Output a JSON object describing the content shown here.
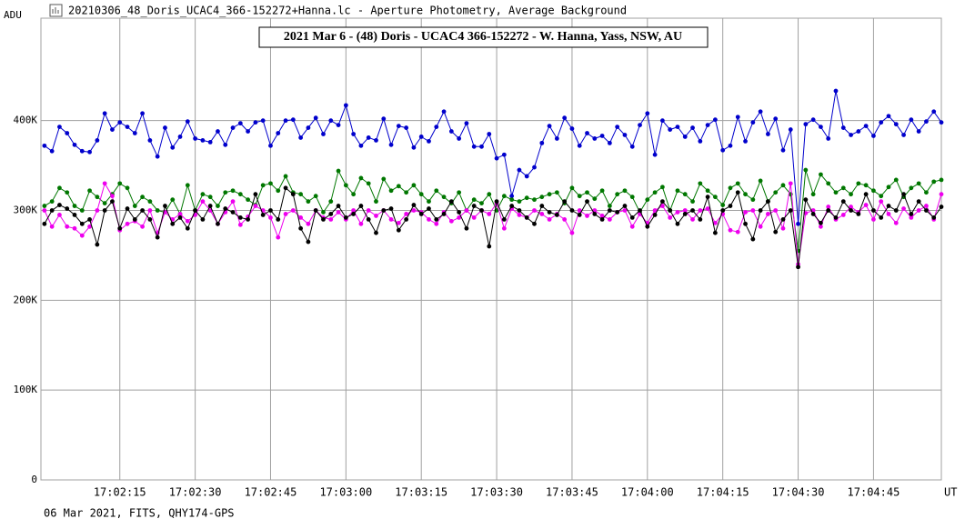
{
  "window_title": "20210306_48_Doris_UCAC4_366-152272+Hanna.lc - Aperture Photometry, Average Background",
  "status": "06 Mar 2021, FITS, QHY174-GPS",
  "chart_data": {
    "type": "line",
    "title": "2021 Mar 6 - (48) Doris - UCAC4 366-152272 - W. Hanna, Yass, NSW, AU",
    "y_label": "ADU",
    "x_label": "UT",
    "grid": true,
    "xlim": [
      -0.7,
      178.5
    ],
    "ylim": [
      0,
      514000
    ],
    "xticks": [
      {
        "value": 15,
        "label": "17:02:15"
      },
      {
        "value": 30,
        "label": "17:02:30"
      },
      {
        "value": 45,
        "label": "17:02:45"
      },
      {
        "value": 60,
        "label": "17:03:00"
      },
      {
        "value": 75,
        "label": "17:03:15"
      },
      {
        "value": 90,
        "label": "17:03:30"
      },
      {
        "value": 105,
        "label": "17:03:45"
      },
      {
        "value": 120,
        "label": "17:04:00"
      },
      {
        "value": 135,
        "label": "17:04:15"
      },
      {
        "value": 150,
        "label": "17:04:30"
      },
      {
        "value": 165,
        "label": "17:04:45"
      }
    ],
    "yticks": [
      0,
      {
        "value": 100000,
        "label": "100K"
      },
      {
        "value": 200000,
        "label": "200K"
      },
      {
        "value": 300000,
        "label": "300K"
      },
      {
        "value": 400000,
        "label": "400K"
      }
    ],
    "x": [
      0,
      1.5,
      3,
      4.5,
      6,
      7.5,
      9,
      10.5,
      12,
      13.5,
      15,
      16.5,
      18,
      19.5,
      21,
      22.5,
      24,
      25.5,
      27,
      28.5,
      30,
      31.5,
      33,
      34.5,
      36,
      37.5,
      39,
      40.5,
      42,
      43.5,
      45,
      46.5,
      48,
      49.5,
      51,
      52.5,
      54,
      55.5,
      57,
      58.5,
      60,
      61.5,
      63,
      64.5,
      66,
      67.5,
      69,
      70.5,
      72,
      73.5,
      75,
      76.5,
      78,
      79.5,
      81,
      82.5,
      84,
      85.5,
      87,
      88.5,
      90,
      91.5,
      93,
      94.5,
      96,
      97.5,
      99,
      100.5,
      102,
      103.5,
      105,
      106.5,
      108,
      109.5,
      111,
      112.5,
      114,
      115.5,
      117,
      118.5,
      120,
      121.5,
      123,
      124.5,
      126,
      127.5,
      129,
      130.5,
      132,
      133.5,
      135,
      136.5,
      138,
      139.5,
      141,
      142.5,
      144,
      145.5,
      147,
      148.5,
      150,
      151.5,
      153,
      154.5,
      156,
      157.5,
      159,
      160.5,
      162,
      163.5,
      165,
      166.5,
      168,
      169.5,
      171,
      172.5,
      174,
      175.5,
      177,
      178.5
    ],
    "series": [
      {
        "color": "#0000cc",
        "values": [
          372000,
          366000,
          393000,
          386000,
          373000,
          366000,
          365000,
          378000,
          408000,
          390000,
          398000,
          393000,
          386000,
          408000,
          378000,
          360000,
          392000,
          370000,
          382000,
          399000,
          380000,
          378000,
          376000,
          388000,
          373000,
          392000,
          397000,
          388000,
          398000,
          400000,
          372000,
          386000,
          400000,
          401000,
          381000,
          392000,
          403000,
          385000,
          400000,
          395000,
          417000,
          385000,
          372000,
          381000,
          378000,
          402000,
          373000,
          394000,
          392000,
          370000,
          382000,
          377000,
          393000,
          410000,
          388000,
          380000,
          397000,
          371000,
          371000,
          385000,
          358000,
          362000,
          316000,
          345000,
          338000,
          348000,
          375000,
          394000,
          380000,
          403000,
          391000,
          372000,
          386000,
          380000,
          383000,
          375000,
          393000,
          384000,
          371000,
          395000,
          408000,
          362000,
          400000,
          390000,
          393000,
          382000,
          392000,
          377000,
          395000,
          401000,
          367000,
          372000,
          404000,
          377000,
          398000,
          410000,
          385000,
          402000,
          367000,
          390000,
          285000,
          396000,
          401000,
          393000,
          380000,
          433000,
          392000,
          384000,
          388000,
          394000,
          383000,
          398000,
          405000,
          396000,
          384000,
          401000,
          388000,
          399000,
          410000,
          398000
        ]
      },
      {
        "color": "#007700",
        "values": [
          305000,
          310000,
          325000,
          320000,
          305000,
          300000,
          322000,
          315000,
          308000,
          318000,
          330000,
          325000,
          305000,
          315000,
          310000,
          300000,
          298000,
          312000,
          296000,
          328000,
          300000,
          318000,
          315000,
          305000,
          320000,
          322000,
          318000,
          312000,
          306000,
          328000,
          330000,
          322000,
          338000,
          320000,
          318000,
          310000,
          316000,
          298000,
          310000,
          344000,
          328000,
          318000,
          336000,
          330000,
          310000,
          335000,
          322000,
          327000,
          320000,
          328000,
          318000,
          310000,
          322000,
          315000,
          308000,
          320000,
          300000,
          312000,
          308000,
          318000,
          300000,
          316000,
          312000,
          310000,
          314000,
          312000,
          315000,
          318000,
          320000,
          308000,
          325000,
          316000,
          320000,
          313000,
          322000,
          305000,
          318000,
          322000,
          315000,
          298000,
          312000,
          320000,
          326000,
          300000,
          322000,
          318000,
          310000,
          330000,
          322000,
          315000,
          306000,
          325000,
          330000,
          318000,
          312000,
          333000,
          310000,
          320000,
          328000,
          318000,
          255000,
          345000,
          318000,
          340000,
          330000,
          320000,
          325000,
          318000,
          330000,
          328000,
          322000,
          316000,
          326000,
          334000,
          315000,
          325000,
          330000,
          320000,
          332000,
          334000
        ]
      },
      {
        "color": "#ee00ee",
        "values": [
          300000,
          282000,
          295000,
          282000,
          280000,
          272000,
          282000,
          300000,
          330000,
          316000,
          278000,
          285000,
          288000,
          282000,
          300000,
          275000,
          298000,
          290000,
          296000,
          288000,
          295000,
          310000,
          300000,
          285000,
          298000,
          310000,
          284000,
          293000,
          305000,
          300000,
          292000,
          270000,
          296000,
          300000,
          292000,
          285000,
          300000,
          292000,
          290000,
          298000,
          290000,
          300000,
          285000,
          300000,
          294000,
          300000,
          290000,
          286000,
          296000,
          300000,
          298000,
          290000,
          285000,
          298000,
          288000,
          292000,
          300000,
          292000,
          300000,
          296000,
          308000,
          280000,
          302000,
          295000,
          292000,
          300000,
          296000,
          290000,
          296000,
          290000,
          275000,
          300000,
          294000,
          300000,
          294000,
          290000,
          298000,
          300000,
          282000,
          296000,
          286000,
          300000,
          305000,
          292000,
          298000,
          300000,
          290000,
          300000,
          302000,
          286000,
          296000,
          278000,
          276000,
          298000,
          300000,
          282000,
          296000,
          300000,
          280000,
          330000,
          240000,
          297000,
          300000,
          282000,
          304000,
          290000,
          295000,
          304000,
          298000,
          306000,
          290000,
          310000,
          296000,
          286000,
          302000,
          292000,
          300000,
          305000,
          290000,
          318000
        ]
      },
      {
        "color": "#000000",
        "values": [
          285000,
          300000,
          306000,
          302000,
          295000,
          285000,
          290000,
          262000,
          300000,
          310000,
          280000,
          302000,
          290000,
          300000,
          290000,
          270000,
          305000,
          285000,
          292000,
          280000,
          300000,
          290000,
          305000,
          285000,
          302000,
          298000,
          292000,
          290000,
          318000,
          295000,
          300000,
          290000,
          325000,
          318000,
          280000,
          265000,
          300000,
          290000,
          296000,
          305000,
          292000,
          296000,
          305000,
          290000,
          275000,
          300000,
          302000,
          278000,
          290000,
          306000,
          296000,
          302000,
          290000,
          296000,
          310000,
          298000,
          280000,
          305000,
          300000,
          260000,
          310000,
          290000,
          305000,
          300000,
          292000,
          285000,
          305000,
          298000,
          295000,
          310000,
          300000,
          295000,
          310000,
          296000,
          290000,
          300000,
          298000,
          305000,
          292000,
          300000,
          282000,
          295000,
          310000,
          300000,
          285000,
          296000,
          300000,
          290000,
          315000,
          275000,
          300000,
          305000,
          320000,
          285000,
          268000,
          300000,
          310000,
          276000,
          290000,
          300000,
          237000,
          312000,
          296000,
          286000,
          300000,
          292000,
          310000,
          300000,
          296000,
          318000,
          300000,
          292000,
          305000,
          300000,
          318000,
          296000,
          310000,
          300000,
          292000,
          304000
        ]
      }
    ]
  }
}
